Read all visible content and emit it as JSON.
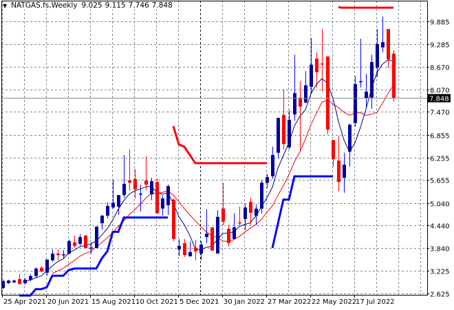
{
  "header": {
    "symbol_timeframe": "NATGAS.fs,Weekly",
    "open": "9.025",
    "high": "9.115",
    "low": "7.746",
    "close": "7.848"
  },
  "colors": {
    "bull": "#0000a0",
    "bear": "#ff0000",
    "fast_ma": "#000080",
    "slow_ma": "#ff0000",
    "support": "#0000ff",
    "resistance": "#ff0000",
    "grid": "#7a8494",
    "current_price_bg": "#000000"
  },
  "chart_data": {
    "type": "candlestick",
    "title": "NATGAS.fs,Weekly",
    "grid": true,
    "ylim": [
      2.625,
      9.885
    ],
    "y_ticks": [
      "9.885",
      "9.285",
      "8.670",
      "8.070",
      "7.470",
      "6.855",
      "6.255",
      "5.655",
      "5.040",
      "4.440",
      "3.840",
      "3.225",
      "2.625"
    ],
    "x_ticks": [
      "25 Apr 2021",
      "20 Jun 2021",
      "15 Aug 2021",
      "10 Oct 2021",
      "5 Dec 2021",
      "30 Jan 2022",
      "27 Mar 2022",
      "22 May 2022",
      "17 Jul 2022"
    ],
    "current_price": "7.848",
    "candles": [
      [
        2.77,
        2.99,
        2.74,
        2.96
      ],
      [
        2.9,
        2.99,
        2.88,
        2.97
      ],
      [
        2.92,
        2.99,
        2.9,
        2.97
      ],
      [
        3.01,
        3.14,
        2.86,
        2.88
      ],
      [
        2.9,
        3.03,
        2.86,
        2.99
      ],
      [
        2.99,
        3.14,
        2.96,
        3.09
      ],
      [
        3.09,
        3.32,
        3.03,
        3.29
      ],
      [
        3.31,
        3.36,
        3.2,
        3.21
      ],
      [
        3.18,
        3.53,
        3.1,
        3.53
      ],
      [
        3.51,
        3.8,
        3.47,
        3.69
      ],
      [
        3.69,
        3.8,
        3.51,
        3.65
      ],
      [
        3.65,
        3.78,
        3.56,
        3.67
      ],
      [
        3.69,
        4.06,
        3.67,
        4.02
      ],
      [
        3.99,
        4.17,
        3.84,
        3.89
      ],
      [
        3.95,
        4.21,
        3.89,
        4.13
      ],
      [
        4.17,
        4.19,
        3.84,
        3.84
      ],
      [
        3.84,
        3.99,
        3.69,
        3.85
      ],
      [
        3.84,
        4.41,
        3.84,
        4.41
      ],
      [
        4.5,
        4.72,
        4.33,
        4.7
      ],
      [
        4.7,
        5.05,
        4.63,
        4.96
      ],
      [
        4.92,
        5.66,
        4.89,
        5.05
      ],
      [
        4.94,
        5.25,
        4.72,
        5.25
      ],
      [
        5.25,
        6.32,
        5.18,
        5.55
      ],
      [
        5.64,
        6.47,
        5.38,
        5.58
      ],
      [
        5.68,
        5.95,
        5.16,
        5.4
      ],
      [
        5.27,
        5.53,
        4.81,
        5.29
      ],
      [
        5.64,
        6.28,
        5.38,
        5.53
      ],
      [
        5.27,
        5.71,
        5.11,
        5.62
      ],
      [
        5.6,
        5.68,
        4.76,
        4.76
      ],
      [
        4.89,
        5.24,
        4.7,
        5.16
      ],
      [
        4.98,
        5.53,
        4.72,
        5.49
      ],
      [
        5.13,
        5.16,
        4.02,
        4.08
      ],
      [
        3.8,
        4.08,
        3.62,
        3.89
      ],
      [
        3.97,
        4.08,
        3.6,
        3.65
      ],
      [
        3.62,
        4.02,
        3.6,
        3.73
      ],
      [
        3.84,
        4.06,
        3.51,
        3.75
      ],
      [
        3.69,
        4.02,
        3.51,
        3.93
      ],
      [
        4.13,
        4.87,
        3.97,
        4.22
      ],
      [
        4.39,
        4.39,
        3.77,
        3.77
      ],
      [
        3.69,
        4.85,
        3.69,
        4.67
      ],
      [
        4.89,
        5.57,
        4.45,
        4.54
      ],
      [
        4.35,
        4.46,
        3.88,
        3.97
      ],
      [
        4.08,
        4.76,
        4.06,
        4.39
      ],
      [
        4.52,
        4.94,
        4.41,
        4.5
      ],
      [
        4.61,
        5.0,
        4.32,
        4.92
      ],
      [
        5.07,
        5.18,
        4.45,
        4.78
      ],
      [
        4.7,
        5.0,
        4.45,
        4.89
      ],
      [
        4.89,
        5.64,
        4.76,
        5.58
      ],
      [
        5.58,
        5.81,
        5.44,
        5.73
      ],
      [
        5.75,
        6.54,
        5.68,
        6.32
      ],
      [
        6.38,
        7.31,
        6.23,
        7.31
      ],
      [
        7.39,
        8.07,
        6.47,
        6.61
      ],
      [
        6.52,
        7.51,
        6.47,
        7.26
      ],
      [
        7.4,
        9.0,
        7.24,
        7.97
      ],
      [
        7.85,
        8.29,
        6.41,
        7.61
      ],
      [
        7.72,
        8.56,
        7.7,
        8.18
      ],
      [
        8.14,
        9.44,
        7.94,
        8.73
      ],
      [
        8.89,
        9.06,
        8.12,
        8.53
      ],
      [
        8.76,
        9.68,
        8.01,
        8.74
      ],
      [
        8.95,
        8.95,
        6.87,
        7.0
      ],
      [
        6.72,
        6.72,
        6.01,
        6.21
      ],
      [
        6.17,
        6.83,
        5.36,
        5.6
      ],
      [
        5.71,
        6.38,
        5.31,
        6.06
      ],
      [
        6.41,
        7.15,
        6.01,
        7.13
      ],
      [
        7.17,
        8.42,
        7.07,
        8.21
      ],
      [
        8.27,
        9.42,
        8.12,
        8.29
      ],
      [
        7.83,
        8.49,
        7.55,
        8.01
      ],
      [
        7.85,
        9.0,
        7.55,
        8.8
      ],
      [
        8.65,
        9.68,
        8.4,
        9.28
      ],
      [
        9.19,
        10.01,
        9.06,
        9.33
      ],
      [
        9.68,
        9.68,
        8.64,
        8.87
      ],
      [
        9.025,
        9.115,
        7.746,
        7.848
      ]
    ],
    "support_lines": [
      [
        [
          3,
          2.57
        ],
        [
          5,
          2.57
        ],
        [
          6,
          2.74
        ],
        [
          7,
          2.74
        ],
        [
          8,
          2.79
        ],
        [
          9,
          3.1
        ],
        [
          11,
          3.1
        ],
        [
          12,
          3.25
        ],
        [
          13,
          3.29
        ],
        [
          17,
          3.29
        ],
        [
          18,
          3.56
        ],
        [
          19,
          3.75
        ],
        [
          20,
          4.27
        ],
        [
          21,
          4.27
        ],
        [
          22,
          4.65
        ],
        [
          30,
          4.65
        ]
      ],
      [
        [
          49,
          3.84
        ],
        [
          51,
          5.13
        ],
        [
          52,
          5.13
        ],
        [
          53,
          5.75
        ],
        [
          60,
          5.75
        ]
      ]
    ],
    "resistance_lines": [
      [
        [
          31,
          7.09
        ],
        [
          32,
          6.6
        ],
        [
          33,
          6.54
        ],
        [
          34,
          6.32
        ],
        [
          35,
          6.1
        ],
        [
          48,
          6.1
        ]
      ],
      [
        [
          61,
          10.27
        ],
        [
          61.5,
          10.25
        ],
        [
          71,
          10.25
        ]
      ]
    ]
  }
}
